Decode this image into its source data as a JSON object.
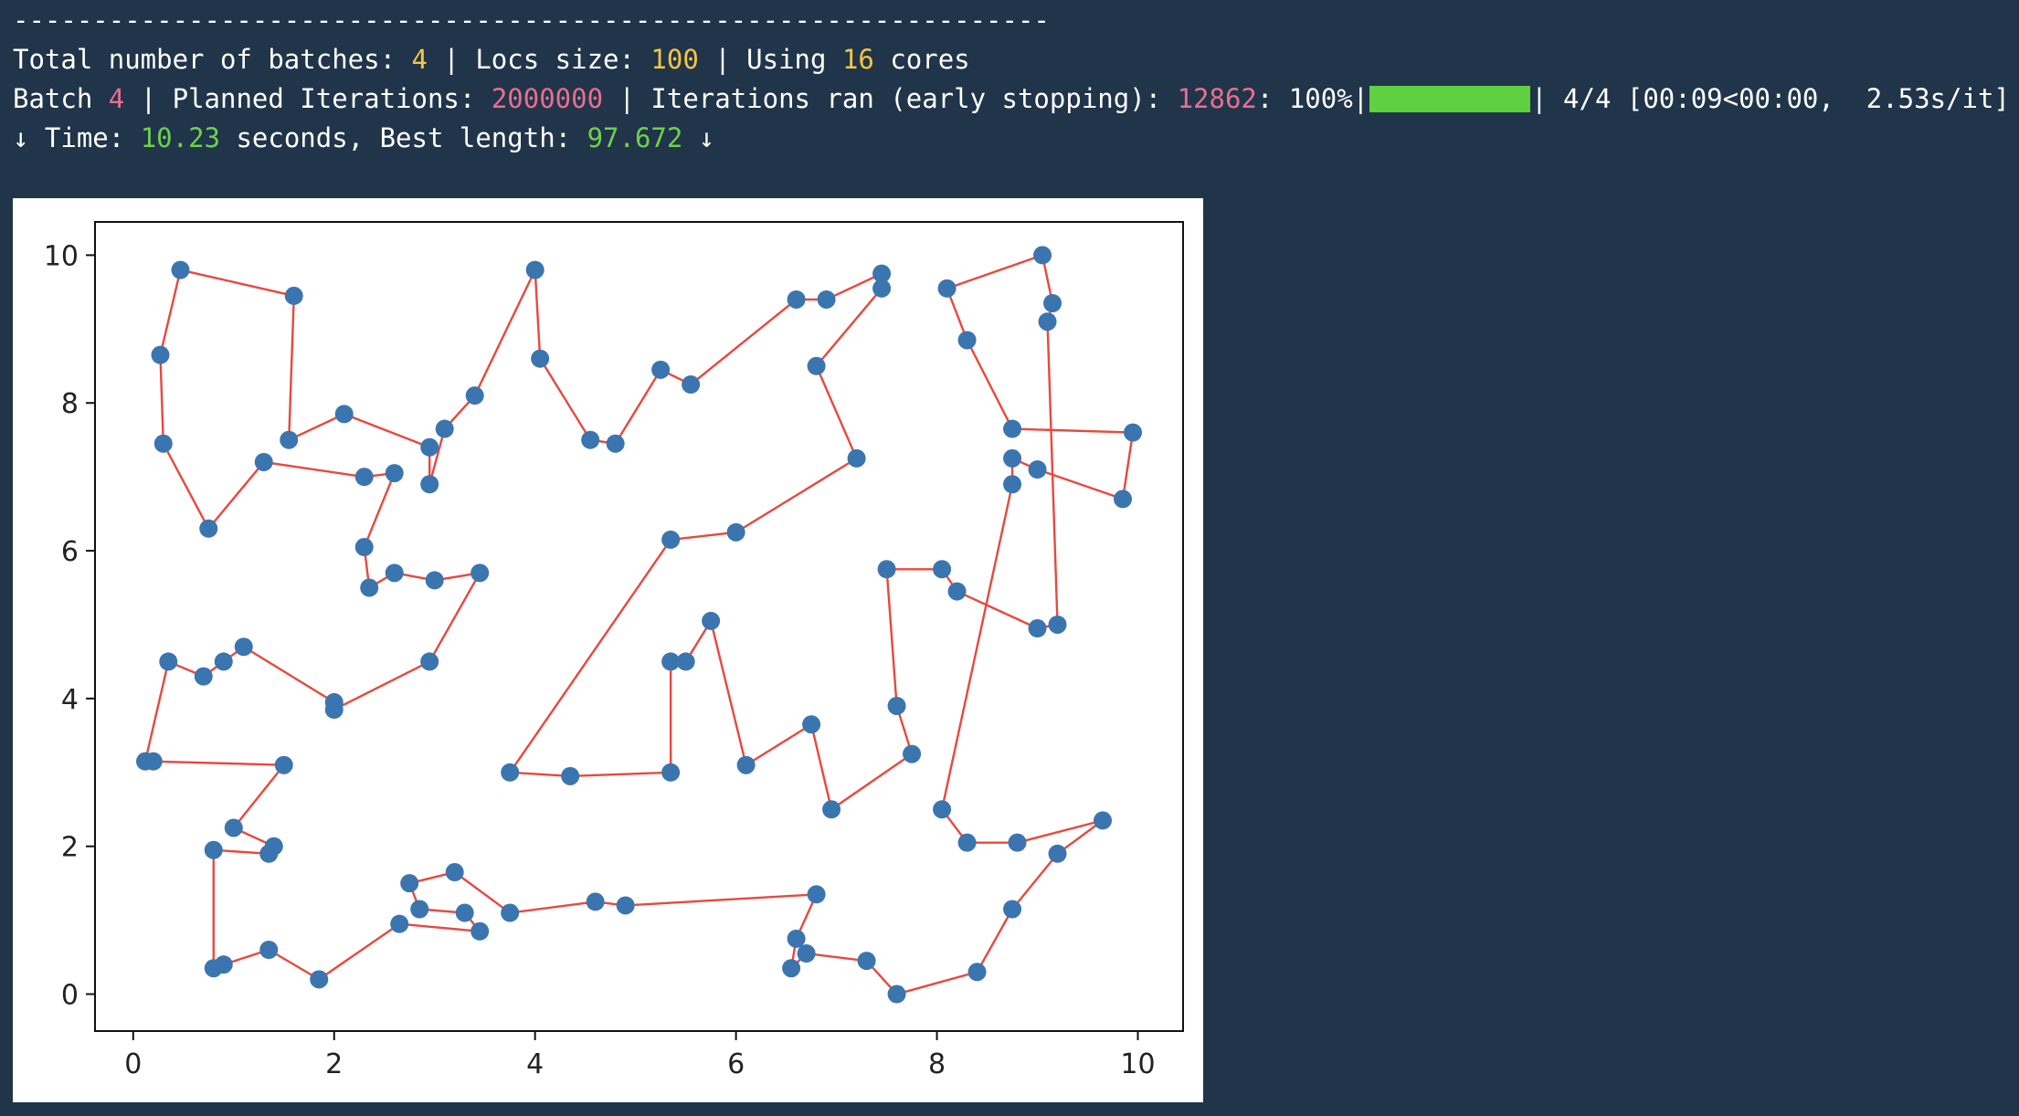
{
  "terminal": {
    "separator": "-----------------------------------------------------------------",
    "line1": {
      "batches_label": "Total number of batches: ",
      "batches_value": "4",
      "locs_label": " | Locs size: ",
      "locs_value": "100",
      "cores_label": " | Using ",
      "cores_value": "16",
      "cores_suffix": " cores"
    },
    "line2": {
      "batch_label": "Batch ",
      "batch_value": "4",
      "planned_label": " | Planned Iterations: ",
      "planned_value": "2000000",
      "ran_label": " | Iterations ran (early stopping): ",
      "ran_value": "12862",
      "progress_text": ": 100%|",
      "progress_fraction": 1.0,
      "progress_tail": "| 4/4 [00:09<00:00,  2.53s/it]"
    },
    "line3": {
      "time_label": "↓ Time: ",
      "time_value": "10.23",
      "length_label": " seconds, Best length: ",
      "length_value": "97.672",
      "suffix": " ↓"
    }
  },
  "chart_data": {
    "type": "scatter",
    "title": "",
    "xlabel": "",
    "ylabel": "",
    "xlim": [
      -0.38,
      10.45
    ],
    "ylim": [
      -0.5,
      10.45
    ],
    "xticks": [
      0,
      2,
      4,
      6,
      8,
      10
    ],
    "yticks": [
      0,
      2,
      4,
      6,
      8,
      10
    ],
    "point_color": "#3b75af",
    "line_color": "#e8483e",
    "grid": false,
    "tour": [
      [
        0.47,
        9.8
      ],
      [
        1.6,
        9.45
      ],
      [
        1.55,
        7.5
      ],
      [
        2.1,
        7.85
      ],
      [
        2.95,
        7.4
      ],
      [
        2.95,
        6.9
      ],
      [
        3.1,
        7.65
      ],
      [
        3.4,
        8.1
      ],
      [
        4.0,
        9.8
      ],
      [
        4.05,
        8.6
      ],
      [
        4.55,
        7.5
      ],
      [
        4.8,
        7.45
      ],
      [
        5.25,
        8.45
      ],
      [
        5.55,
        8.25
      ],
      [
        6.6,
        9.4
      ],
      [
        6.9,
        9.4
      ],
      [
        7.45,
        9.75
      ],
      [
        7.45,
        9.55
      ],
      [
        6.8,
        8.5
      ],
      [
        7.2,
        7.25
      ],
      [
        6.0,
        6.25
      ],
      [
        5.35,
        6.15
      ],
      [
        3.75,
        3.0
      ],
      [
        4.35,
        2.95
      ],
      [
        5.35,
        3.0
      ],
      [
        5.35,
        4.5
      ],
      [
        5.5,
        4.5
      ],
      [
        5.75,
        5.05
      ],
      [
        6.1,
        3.1
      ],
      [
        6.75,
        3.65
      ],
      [
        6.95,
        2.5
      ],
      [
        7.75,
        3.25
      ],
      [
        7.6,
        3.9
      ],
      [
        7.5,
        5.75
      ],
      [
        8.05,
        5.75
      ],
      [
        8.2,
        5.45
      ],
      [
        9.0,
        4.95
      ],
      [
        9.2,
        5.0
      ],
      [
        9.1,
        9.1
      ],
      [
        9.15,
        9.35
      ],
      [
        9.05,
        10.0
      ],
      [
        8.1,
        9.55
      ],
      [
        8.3,
        8.85
      ],
      [
        8.75,
        7.65
      ],
      [
        9.95,
        7.6
      ],
      [
        9.85,
        6.7
      ],
      [
        9.0,
        7.1
      ],
      [
        8.75,
        7.25
      ],
      [
        8.75,
        6.9
      ],
      [
        8.05,
        2.5
      ],
      [
        8.3,
        2.05
      ],
      [
        8.8,
        2.05
      ],
      [
        9.65,
        2.35
      ],
      [
        9.2,
        1.9
      ],
      [
        8.75,
        1.15
      ],
      [
        8.4,
        0.3
      ],
      [
        7.6,
        0.0
      ],
      [
        7.3,
        0.45
      ],
      [
        6.7,
        0.55
      ],
      [
        6.55,
        0.35
      ],
      [
        6.6,
        0.75
      ],
      [
        6.8,
        1.35
      ],
      [
        4.9,
        1.2
      ],
      [
        4.6,
        1.25
      ],
      [
        3.75,
        1.1
      ],
      [
        3.2,
        1.65
      ],
      [
        2.75,
        1.5
      ],
      [
        2.85,
        1.15
      ],
      [
        3.3,
        1.1
      ],
      [
        3.45,
        0.85
      ],
      [
        2.65,
        0.95
      ],
      [
        1.85,
        0.2
      ],
      [
        1.35,
        0.6
      ],
      [
        0.9,
        0.4
      ],
      [
        0.8,
        0.35
      ],
      [
        0.8,
        1.95
      ],
      [
        1.35,
        1.9
      ],
      [
        1.4,
        2.0
      ],
      [
        1.0,
        2.25
      ],
      [
        1.5,
        3.1
      ],
      [
        0.2,
        3.15
      ],
      [
        0.12,
        3.15
      ],
      [
        0.35,
        4.5
      ],
      [
        0.7,
        4.3
      ],
      [
        0.9,
        4.5
      ],
      [
        1.1,
        4.7
      ],
      [
        2.0,
        3.95
      ],
      [
        2.0,
        3.85
      ],
      [
        2.95,
        4.5
      ],
      [
        3.45,
        5.7
      ],
      [
        3.0,
        5.6
      ],
      [
        2.6,
        5.7
      ],
      [
        2.35,
        5.5
      ],
      [
        2.3,
        6.05
      ],
      [
        2.6,
        7.05
      ],
      [
        2.3,
        7.0
      ],
      [
        1.3,
        7.2
      ],
      [
        0.75,
        6.3
      ],
      [
        0.3,
        7.45
      ],
      [
        0.27,
        8.65
      ]
    ]
  }
}
